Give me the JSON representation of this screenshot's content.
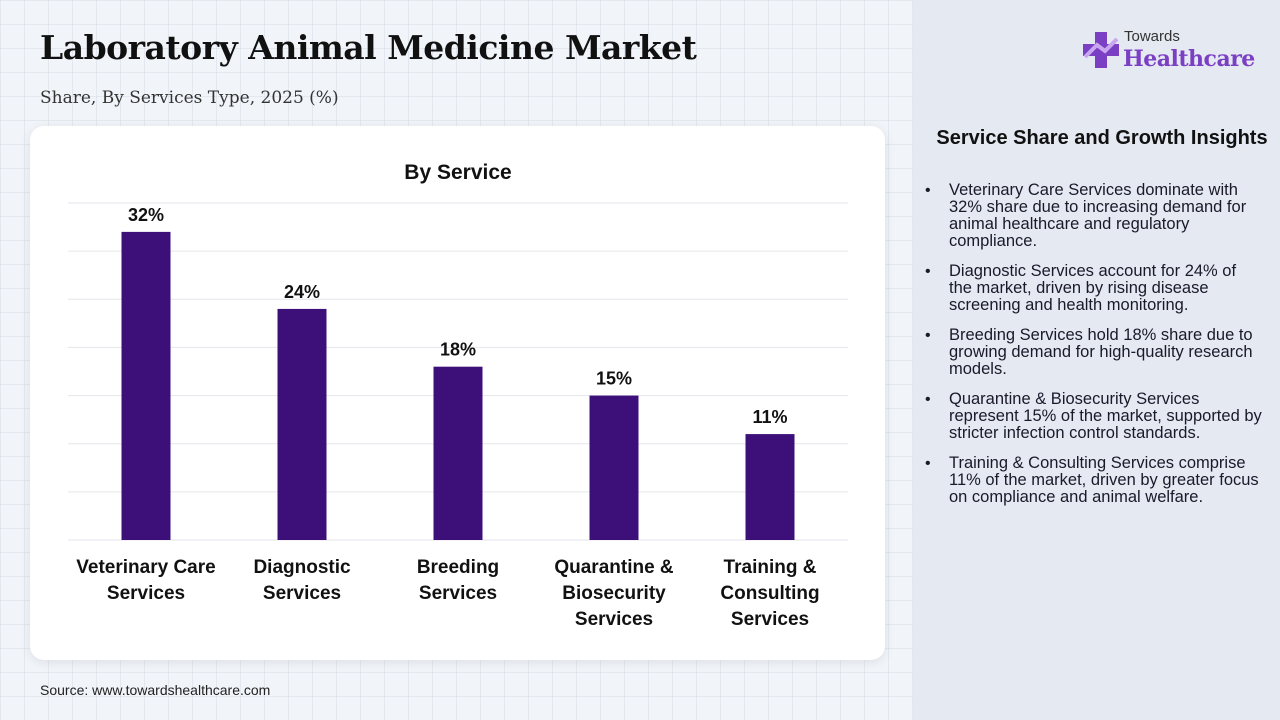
{
  "header": {
    "title": "Laboratory Animal Medicine Market",
    "subtitle": "Share, By Services Type, 2025 (%)"
  },
  "logo": {
    "line1": "Towards",
    "line2": "Healthcare"
  },
  "chart_data": {
    "type": "bar",
    "title": "By Service",
    "categories": [
      [
        "Veterinary Care",
        "Services"
      ],
      [
        "Diagnostic",
        "Services"
      ],
      [
        "Breeding",
        "Services"
      ],
      [
        "Quarantine &",
        "Biosecurity",
        "Services"
      ],
      [
        "Training &",
        "Consulting",
        "Services"
      ]
    ],
    "values": [
      32,
      24,
      18,
      15,
      11
    ],
    "value_labels": [
      "32%",
      "24%",
      "18%",
      "15%",
      "11%"
    ],
    "ylim": [
      0,
      35
    ],
    "grid": true,
    "bar_color": "#3d0f78"
  },
  "insights": {
    "title": "Service Share and Growth Insights",
    "items": [
      "Veterinary Care Services dominate with 32% share due to increasing demand for animal healthcare and regulatory compliance.",
      "Diagnostic Services account for 24% of the market, driven by rising disease screening and health monitoring.",
      "Breeding Services hold 18% share due to growing demand for high-quality research models.",
      "Quarantine & Biosecurity Services represent 15% of the market, supported by stricter infection control standards.",
      "Training & Consulting Services comprise 11% of the market, driven by greater focus on compliance and animal welfare."
    ]
  },
  "footer": {
    "source": "Source: www.towardshealthcare.com"
  }
}
